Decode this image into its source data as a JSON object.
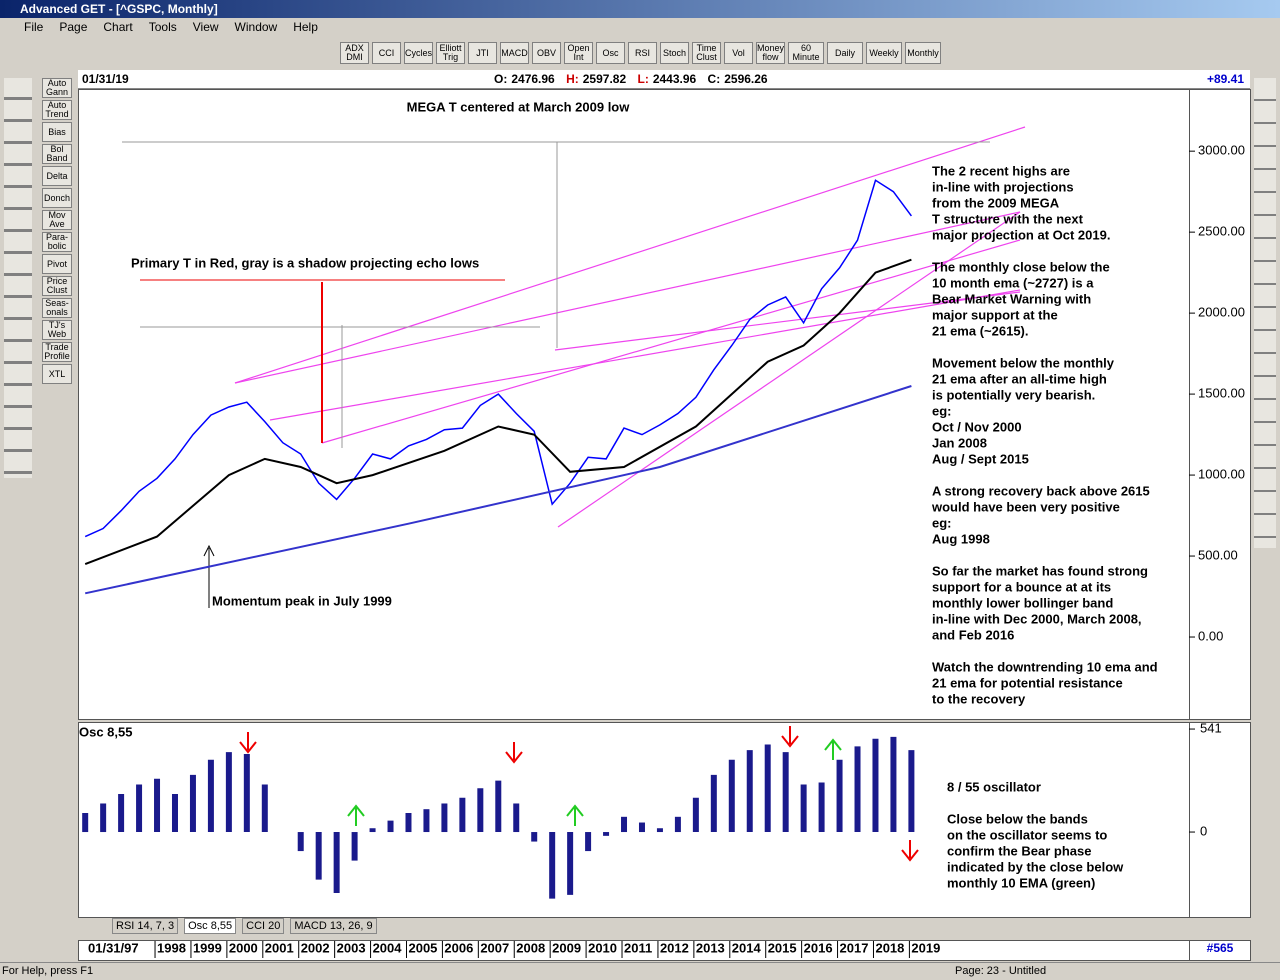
{
  "window": {
    "title": "Advanced GET - [^GSPC, Monthly]"
  },
  "menu": [
    "File",
    "Page",
    "Chart",
    "Tools",
    "View",
    "Window",
    "Help"
  ],
  "toolbar": [
    "ADX DMI",
    "CCI",
    "Cycles",
    "Elliott Trig",
    "JTI",
    "MACD",
    "OBV",
    "Open Int",
    "Osc",
    "RSI",
    "Stoch",
    "Time Clust",
    "Vol",
    "Money flow",
    "60 Minute",
    "Daily",
    "Weekly",
    "Monthly"
  ],
  "left_tools": [
    "Auto Gann",
    "Auto Trend",
    "Bias",
    "Bol Band",
    "Delta",
    "Donch",
    "Mov Ave",
    "Para-bolic",
    "Pivot",
    "Price Clust",
    "Seas-onals",
    "TJ's Web",
    "Trade Profile",
    "XTL"
  ],
  "header": {
    "date": "01/31/19",
    "open_label": "O:",
    "open": 2476.96,
    "high_label": "H:",
    "high": 2597.82,
    "low_label": "L:",
    "low": 2443.96,
    "close_label": "C:",
    "close": 2596.26,
    "change": "+89.41"
  },
  "chart_data": {
    "type": "line",
    "title": "MEGA T centered at March 2009 low",
    "notes": [
      {
        "text": "Primary T in Red, gray is a shadow projecting echo lows"
      },
      {
        "text": "Momentum peak in July 1999"
      }
    ],
    "commentary": [
      [
        "The 2 recent highs are",
        "in-line with projections",
        "from the 2009 MEGA",
        "T structure with the next",
        "major projection at Oct 2019."
      ],
      [
        "The monthly close below the",
        "10 month ema (~2727) is a",
        "Bear Market Warning with",
        "major support at the",
        "21 ema (~2615)."
      ],
      [
        "Movement below the monthly",
        "21 ema after an all-time high",
        "is potentially very bearish.",
        "eg:",
        "Oct / Nov 2000",
        "Jan 2008",
        "Aug / Sept 2015"
      ],
      [
        "A strong recovery back above 2615",
        "would have been very positive",
        "eg:",
        "Aug 1998"
      ],
      [
        "So far the market has found strong",
        "support for a bounce at at its",
        "monthly lower bollinger band",
        "in-line with Dec 2000, March 2008,",
        "and Feb 2016"
      ],
      [
        "Watch the downtrending 10 ema and",
        "21 ema for potential resistance",
        "to the recovery"
      ]
    ],
    "xlim": [
      1995.8,
      2026.7
    ],
    "xticks": [
      1998,
      1999,
      2000,
      2001,
      2002,
      2003,
      2004,
      2005,
      2006,
      2007,
      2008,
      2009,
      2010,
      2011,
      2012,
      2013,
      2014,
      2015,
      2016,
      2017,
      2018,
      2019
    ],
    "date_box": "01/31/97",
    "bar_count": "#565",
    "ylim": [
      -500,
      3390
    ],
    "yticks": [
      {
        "value": 3000,
        "label": "3000.00"
      },
      {
        "value": 2500,
        "label": "2500.00"
      },
      {
        "value": 2000,
        "label": "2000.00"
      },
      {
        "value": 1500,
        "label": "1500.00"
      },
      {
        "value": 1000,
        "label": "1000.00"
      },
      {
        "value": 500,
        "label": "500.00"
      },
      {
        "value": 0,
        "label": "0.00"
      }
    ],
    "series": [
      {
        "color": "#0000ff",
        "x": [
          1996,
          1996.5,
          1997,
          1997.5,
          1998,
          1998.5,
          1999,
          1999.5,
          2000,
          2000.5,
          2001,
          2001.5,
          2002,
          2002.5,
          2003,
          2003.5,
          2004,
          2004.5,
          2005,
          2005.5,
          2006,
          2006.5,
          2007,
          2007.5,
          2008,
          2008.5,
          2009,
          2009.5,
          2010,
          2010.5,
          2011,
          2011.5,
          2012,
          2012.5,
          2013,
          2013.5,
          2014,
          2014.5,
          2015,
          2015.5,
          2016,
          2016.5,
          2017,
          2017.5,
          2018,
          2018.5,
          2019
        ],
        "values": [
          620,
          670,
          780,
          900,
          980,
          1100,
          1250,
          1370,
          1420,
          1450,
          1330,
          1200,
          1130,
          950,
          850,
          980,
          1130,
          1100,
          1180,
          1220,
          1280,
          1290,
          1430,
          1500,
          1380,
          1270,
          820,
          950,
          1110,
          1100,
          1290,
          1250,
          1310,
          1380,
          1480,
          1650,
          1800,
          1960,
          2050,
          2100,
          1940,
          2150,
          2280,
          2450,
          2820,
          2750,
          2600
        ]
      },
      {
        "color": "#000000",
        "x": [
          1996,
          1998,
          2000,
          2001,
          2002,
          2003,
          2004,
          2006,
          2007.5,
          2008.5,
          2009.5,
          2011,
          2013,
          2015,
          2016,
          2017,
          2018,
          2019
        ],
        "values": [
          450,
          620,
          1000,
          1100,
          1050,
          950,
          1000,
          1150,
          1300,
          1250,
          1020,
          1050,
          1300,
          1700,
          1800,
          2000,
          2250,
          2330
        ]
      },
      {
        "color": "#3333cc",
        "x": [
          1996,
          2005,
          2012,
          2019
        ],
        "values": [
          270,
          700,
          1050,
          1550
        ]
      }
    ]
  },
  "oscillator": {
    "type": "bar",
    "label": "Osc 8,55",
    "color": "#1a1a8c",
    "ylim": [
      -441,
      578
    ],
    "yticks": [
      541,
      0
    ],
    "x": [
      1996,
      1996.5,
      1997,
      1997.5,
      1998,
      1998.5,
      1999,
      1999.5,
      2000,
      2000.5,
      2001,
      2001.5,
      2002,
      2002.5,
      2003,
      2003.5,
      2004,
      2004.5,
      2005,
      2005.5,
      2006,
      2006.5,
      2007,
      2007.5,
      2008,
      2008.5,
      2009,
      2009.5,
      2010,
      2010.5,
      2011,
      2011.5,
      2012,
      2012.5,
      2013,
      2013.5,
      2014,
      2014.5,
      2015,
      2015.5,
      2016,
      2016.5,
      2017,
      2017.5,
      2018,
      2018.5,
      2019
    ],
    "values": [
      100,
      150,
      200,
      250,
      280,
      200,
      300,
      380,
      420,
      410,
      250,
      0,
      -100,
      -250,
      -320,
      -150,
      20,
      60,
      100,
      120,
      150,
      180,
      230,
      270,
      150,
      -50,
      -350,
      -330,
      -100,
      -20,
      80,
      50,
      20,
      80,
      180,
      300,
      380,
      430,
      460,
      420,
      250,
      260,
      380,
      450,
      490,
      500,
      430
    ],
    "notes": [
      [
        "8 / 55 oscillator"
      ],
      [
        "Close below the bands",
        "on the oscillator seems to",
        "confirm the Bear phase",
        "indicated by the close below",
        "monthly 10 EMA (green)"
      ]
    ]
  },
  "tabs": [
    "RSI 14, 7, 3",
    "Osc 8,55",
    "CCI 20",
    "MACD 13, 26, 9"
  ],
  "status": {
    "help": "For Help, press F1",
    "page": "Page: 23 - Untitled"
  }
}
